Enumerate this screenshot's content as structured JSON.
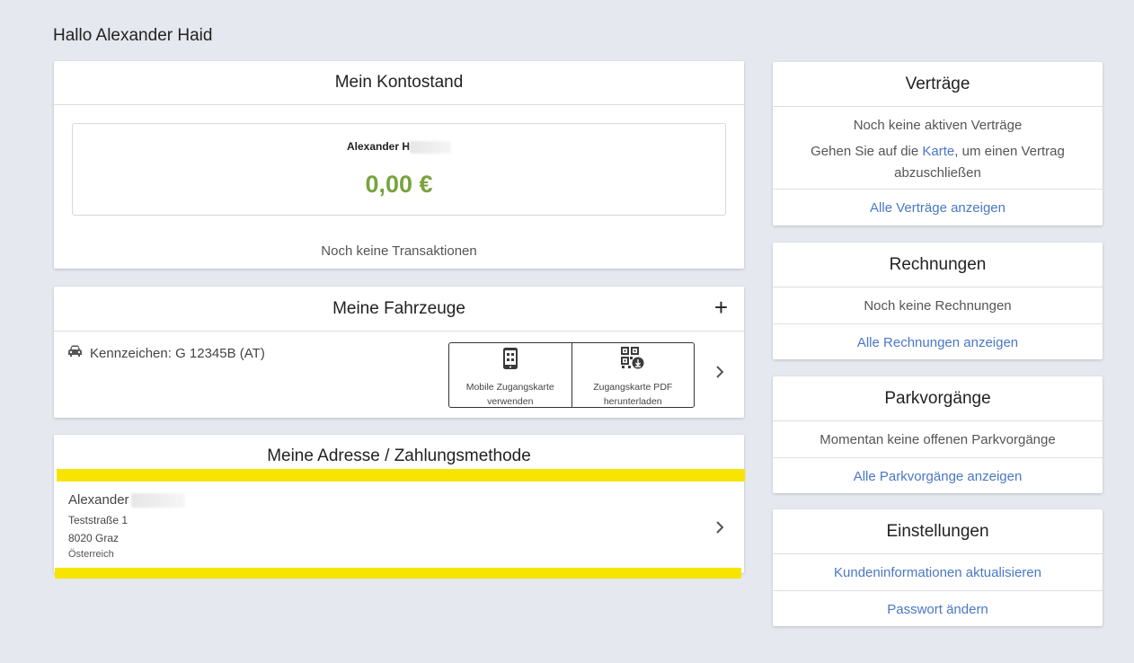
{
  "greeting": "Hallo Alexander Haid",
  "balance": {
    "title": "Mein Kontostand",
    "name": "Alexander H",
    "amount": "0,00 €",
    "no_transactions": "Noch keine Transaktionen"
  },
  "vehicles": {
    "title": "Meine Fahrzeuge",
    "add_symbol": "+",
    "plate_label": "Kennzeichen: G 12345B (AT)",
    "mobile_card_label_1": "Mobile Zugangskarte",
    "mobile_card_label_2": "verwenden",
    "pdf_card_label_1": "Zugangskarte PDF",
    "pdf_card_label_2": "herunterladen"
  },
  "address": {
    "title": "Meine Adresse / Zahlungsmethode",
    "name": "Alexander",
    "street": "Teststraße 1",
    "city": "8020 Graz",
    "country": "Österreich"
  },
  "contracts": {
    "title": "Verträge",
    "none": "Noch keine aktiven Verträge",
    "hint_pre": "Gehen Sie auf die ",
    "hint_link": "Karte",
    "hint_post": ", um einen Vertrag",
    "hint_line2": "abzuschließen",
    "all_link": "Alle Verträge anzeigen"
  },
  "invoices": {
    "title": "Rechnungen",
    "none": "Noch keine Rechnungen",
    "all_link": "Alle Rechnungen anzeigen"
  },
  "parking": {
    "title": "Parkvorgänge",
    "none": "Momentan keine offenen Parkvorgänge",
    "all_link": "Alle Parkvorgänge anzeigen"
  },
  "settings": {
    "title": "Einstellungen",
    "update_info": "Kundeninformationen aktualisieren",
    "change_password": "Passwort ändern"
  },
  "colors": {
    "balance_green": "#79a33e",
    "link_blue": "#4a77c4",
    "highlight_yellow": "#f7e400"
  }
}
